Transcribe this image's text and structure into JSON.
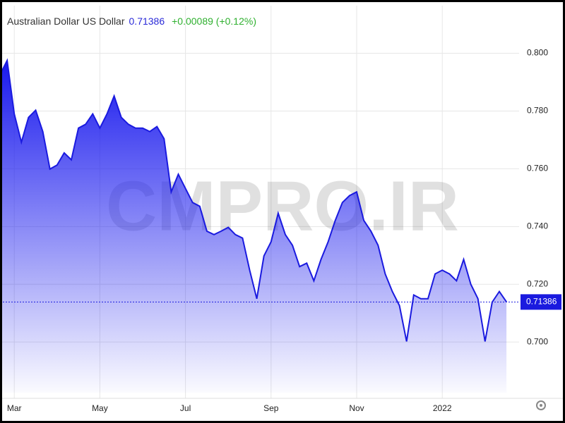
{
  "chart_data": {
    "type": "area",
    "title": "Australian Dollar US Dollar",
    "price": 0.71386,
    "change": "+0.00089 (+0.12%)",
    "watermark": "CMPRO.IR",
    "categories": [
      null,
      null,
      "Mar",
      null,
      null,
      null,
      null,
      null,
      null,
      null,
      null,
      null,
      null,
      null,
      "May",
      null,
      null,
      null,
      null,
      null,
      null,
      null,
      null,
      null,
      null,
      null,
      "Jul",
      null,
      null,
      null,
      null,
      null,
      null,
      null,
      null,
      null,
      null,
      null,
      "Sep",
      null,
      null,
      null,
      null,
      null,
      null,
      null,
      null,
      null,
      null,
      null,
      "Nov",
      null,
      null,
      null,
      null,
      null,
      null,
      null,
      null,
      null,
      null,
      null,
      "2022",
      null,
      null,
      null,
      null,
      null,
      null,
      null,
      null,
      null
    ],
    "series": [
      {
        "name": "Australian Dollar US Dollar",
        "color": "#1a1adf",
        "values": [
          0.7926,
          0.7975,
          0.779,
          0.7692,
          0.7778,
          0.7803,
          0.7729,
          0.7599,
          0.7613,
          0.7655,
          0.7631,
          0.7741,
          0.7754,
          0.779,
          0.7741,
          0.779,
          0.7852,
          0.7778,
          0.7754,
          0.7741,
          0.7741,
          0.7729,
          0.7746,
          0.7704,
          0.752,
          0.7581,
          0.7532,
          0.7483,
          0.747,
          0.7384,
          0.7372,
          0.7384,
          0.7397,
          0.7372,
          0.736,
          0.7249,
          0.715,
          0.7298,
          0.7347,
          0.7446,
          0.7372,
          0.7335,
          0.7261,
          0.7273,
          0.7212,
          0.7286,
          0.7347,
          0.7421,
          0.7483,
          0.7507,
          0.752,
          0.7421,
          0.7384,
          0.7335,
          0.7236,
          0.7175,
          0.7126,
          0.7002,
          0.7163,
          0.715,
          0.715,
          0.7236,
          0.7249,
          0.7236,
          0.7212,
          0.7286,
          0.72,
          0.715,
          0.7002,
          0.7138,
          0.7175,
          0.7139
        ]
      }
    ],
    "ylim": [
      0.6805,
      0.8165
    ],
    "yticks": [
      {
        "value": 0.7,
        "label": "0.700"
      },
      {
        "value": 0.72,
        "label": "0.720"
      },
      {
        "value": 0.74,
        "label": "0.740"
      },
      {
        "value": 0.76,
        "label": "0.760"
      },
      {
        "value": 0.78,
        "label": "0.780"
      },
      {
        "value": 0.8,
        "label": "0.800"
      }
    ],
    "grid": true
  }
}
